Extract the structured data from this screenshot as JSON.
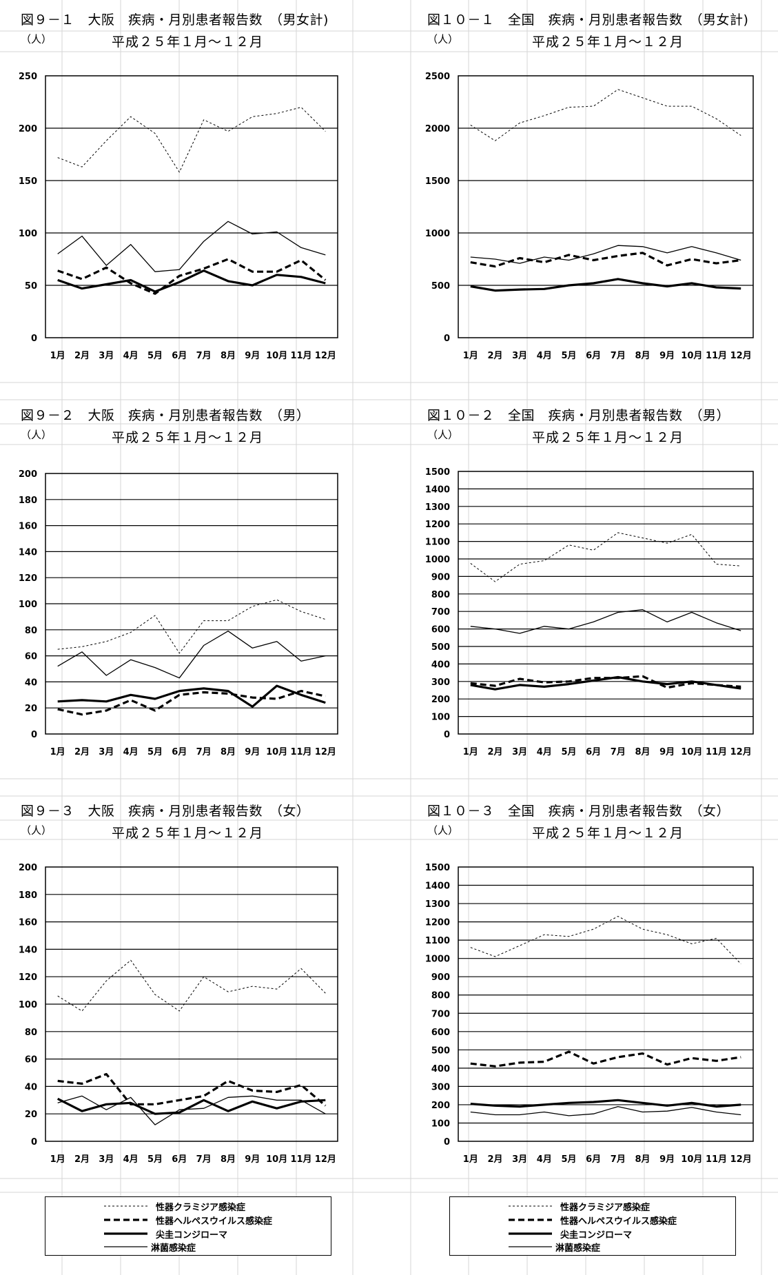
{
  "months": [
    "1月",
    "2月",
    "3月",
    "4月",
    "5月",
    "6月",
    "7月",
    "8月",
    "9月",
    "10月",
    "11月",
    "12月"
  ],
  "series_styles": [
    {
      "name": "性器クラミジア感染症",
      "dash": "3,3",
      "width": 1
    },
    {
      "name": "性器ヘルペスウイルス感染症",
      "dash": "9,5",
      "width": 3.2
    },
    {
      "name": "尖圭コンジローマ",
      "dash": "",
      "width": 3.2
    },
    {
      "name": "淋菌感染症",
      "dash": "",
      "width": 1.3
    }
  ],
  "legend": {
    "items": [
      "性器クラミジア感染症",
      "性器ヘルペスウイルス感染症",
      "尖圭コンジローマ",
      "淋菌感染症"
    ]
  },
  "chart_data": [
    {
      "type": "line",
      "title": "図９－１　大阪　疾病・月別患者報告数　（男女計)",
      "unit": "（人）",
      "subtitle": "平成２５年１月～１２月",
      "categories": [
        "1月",
        "2月",
        "3月",
        "4月",
        "5月",
        "6月",
        "7月",
        "8月",
        "9月",
        "10月",
        "11月",
        "12月"
      ],
      "ylim": [
        0,
        250
      ],
      "ystep": 50,
      "grid": true,
      "series": [
        {
          "name": "性器クラミジア感染症",
          "values": [
            172,
            163,
            188,
            211,
            195,
            158,
            208,
            197,
            211,
            214,
            220,
            197
          ]
        },
        {
          "name": "性器ヘルペスウイルス感染症",
          "values": [
            64,
            56,
            67,
            52,
            42,
            59,
            66,
            75,
            63,
            63,
            74,
            55
          ]
        },
        {
          "name": "尖圭コンジローマ",
          "values": [
            55,
            47,
            51,
            55,
            44,
            53,
            64,
            54,
            50,
            60,
            58,
            52
          ]
        },
        {
          "name": "淋菌感染症",
          "values": [
            80,
            97,
            69,
            89,
            63,
            65,
            92,
            111,
            99,
            101,
            86,
            79
          ]
        }
      ]
    },
    {
      "type": "line",
      "title": "図１０－１　全国　疾病・月別患者報告数　（男女計)",
      "unit": "（人）",
      "subtitle": "平成２５年１月～１２月",
      "categories": [
        "1月",
        "2月",
        "3月",
        "4月",
        "5月",
        "6月",
        "7月",
        "8月",
        "9月",
        "10月",
        "11月",
        "12月"
      ],
      "ylim": [
        0,
        2500
      ],
      "ystep": 500,
      "grid": true,
      "series": [
        {
          "name": "性器クラミジア感染症",
          "values": [
            2030,
            1880,
            2050,
            2120,
            2200,
            2210,
            2370,
            2290,
            2210,
            2210,
            2090,
            1930
          ]
        },
        {
          "name": "性器ヘルペスウイルス感染症",
          "values": [
            720,
            680,
            760,
            720,
            790,
            740,
            780,
            810,
            690,
            750,
            710,
            740
          ]
        },
        {
          "name": "尖圭コンジローマ",
          "values": [
            490,
            450,
            460,
            465,
            500,
            520,
            560,
            520,
            490,
            520,
            480,
            470
          ]
        },
        {
          "name": "淋菌感染症",
          "values": [
            770,
            750,
            710,
            770,
            740,
            800,
            880,
            870,
            810,
            870,
            810,
            740
          ]
        }
      ]
    },
    {
      "type": "line",
      "title": "図９－２　大阪　疾病・月別患者報告数　（男）",
      "unit": "（人）",
      "subtitle": "平成２５年１月～１２月",
      "categories": [
        "1月",
        "2月",
        "3月",
        "4月",
        "5月",
        "6月",
        "7月",
        "8月",
        "9月",
        "10月",
        "11月",
        "12月"
      ],
      "ylim": [
        0,
        200
      ],
      "ystep": 20,
      "grid": true,
      "series": [
        {
          "name": "性器クラミジア感染症",
          "values": [
            65,
            67,
            71,
            78,
            91,
            62,
            87,
            87,
            98,
            103,
            94,
            88
          ]
        },
        {
          "name": "性器ヘルペスウイルス感染症",
          "values": [
            19,
            15,
            18,
            26,
            18,
            30,
            32,
            31,
            28,
            27,
            33,
            29
          ]
        },
        {
          "name": "尖圭コンジローマ",
          "values": [
            25,
            26,
            25,
            30,
            27,
            33,
            35,
            33,
            21,
            37,
            30,
            24
          ]
        },
        {
          "name": "淋菌感染症",
          "values": [
            52,
            63,
            45,
            57,
            51,
            43,
            68,
            79,
            66,
            71,
            56,
            60
          ]
        }
      ]
    },
    {
      "type": "line",
      "title": "図１０－２　全国　疾病・月別患者報告数　（男）",
      "unit": "（人）",
      "subtitle": "平成２５年１月～１２月",
      "categories": [
        "1月",
        "2月",
        "3月",
        "4月",
        "5月",
        "6月",
        "7月",
        "8月",
        "9月",
        "10月",
        "11月",
        "12月"
      ],
      "ylim": [
        0,
        1500
      ],
      "ystep": 100,
      "grid": true,
      "series": [
        {
          "name": "性器クラミジア感染症",
          "values": [
            975,
            870,
            970,
            990,
            1080,
            1050,
            1150,
            1120,
            1090,
            1140,
            970,
            960
          ]
        },
        {
          "name": "性器ヘルペスウイルス感染症",
          "values": [
            290,
            275,
            315,
            295,
            300,
            320,
            320,
            330,
            265,
            290,
            280,
            270
          ]
        },
        {
          "name": "尖圭コンジローマ",
          "values": [
            280,
            255,
            280,
            270,
            285,
            305,
            325,
            300,
            285,
            300,
            280,
            260
          ]
        },
        {
          "name": "淋菌感染症",
          "values": [
            615,
            600,
            575,
            615,
            600,
            640,
            695,
            710,
            640,
            695,
            635,
            590
          ]
        }
      ]
    },
    {
      "type": "line",
      "title": "図９－３　大阪　疾病・月別患者報告数　（女）",
      "unit": "（人）",
      "subtitle": "平成２５年１月～１２月",
      "categories": [
        "1月",
        "2月",
        "3月",
        "4月",
        "5月",
        "6月",
        "7月",
        "8月",
        "9月",
        "10月",
        "11月",
        "12月"
      ],
      "ylim": [
        0,
        200
      ],
      "ystep": 20,
      "grid": true,
      "series": [
        {
          "name": "性器クラミジア感染症",
          "values": [
            106,
            95,
            117,
            132,
            107,
            95,
            120,
            109,
            113,
            111,
            126,
            108
          ]
        },
        {
          "name": "性器ヘルペスウイルス感染症",
          "values": [
            44,
            42,
            49,
            27,
            27,
            30,
            33,
            44,
            37,
            36,
            41,
            26
          ]
        },
        {
          "name": "尖圭コンジローマ",
          "values": [
            31,
            22,
            27,
            28,
            20,
            21,
            30,
            22,
            29,
            24,
            29,
            30
          ]
        },
        {
          "name": "淋菌感染症",
          "values": [
            28,
            33,
            23,
            32,
            12,
            23,
            24,
            32,
            33,
            30,
            30,
            20
          ]
        }
      ]
    },
    {
      "type": "line",
      "title": "図１０－３　全国　疾病・月別患者報告数　（女）",
      "unit": "（人）",
      "subtitle": "平成２５年１月～１２月",
      "categories": [
        "1月",
        "2月",
        "3月",
        "4月",
        "5月",
        "6月",
        "7月",
        "8月",
        "9月",
        "10月",
        "11月",
        "12月"
      ],
      "ylim": [
        0,
        1500
      ],
      "ystep": 100,
      "grid": true,
      "series": [
        {
          "name": "性器クラミジア感染症",
          "values": [
            1060,
            1010,
            1070,
            1130,
            1120,
            1160,
            1230,
            1160,
            1130,
            1080,
            1110,
            970
          ]
        },
        {
          "name": "性器ヘルペスウイルス感染症",
          "values": [
            425,
            410,
            430,
            435,
            490,
            425,
            460,
            480,
            420,
            455,
            440,
            460
          ]
        },
        {
          "name": "尖圭コンジローマ",
          "values": [
            205,
            195,
            190,
            200,
            210,
            215,
            225,
            210,
            195,
            210,
            190,
            200
          ]
        },
        {
          "name": "淋菌感染症",
          "values": [
            160,
            145,
            145,
            160,
            140,
            150,
            190,
            160,
            165,
            185,
            160,
            145
          ]
        }
      ]
    }
  ]
}
